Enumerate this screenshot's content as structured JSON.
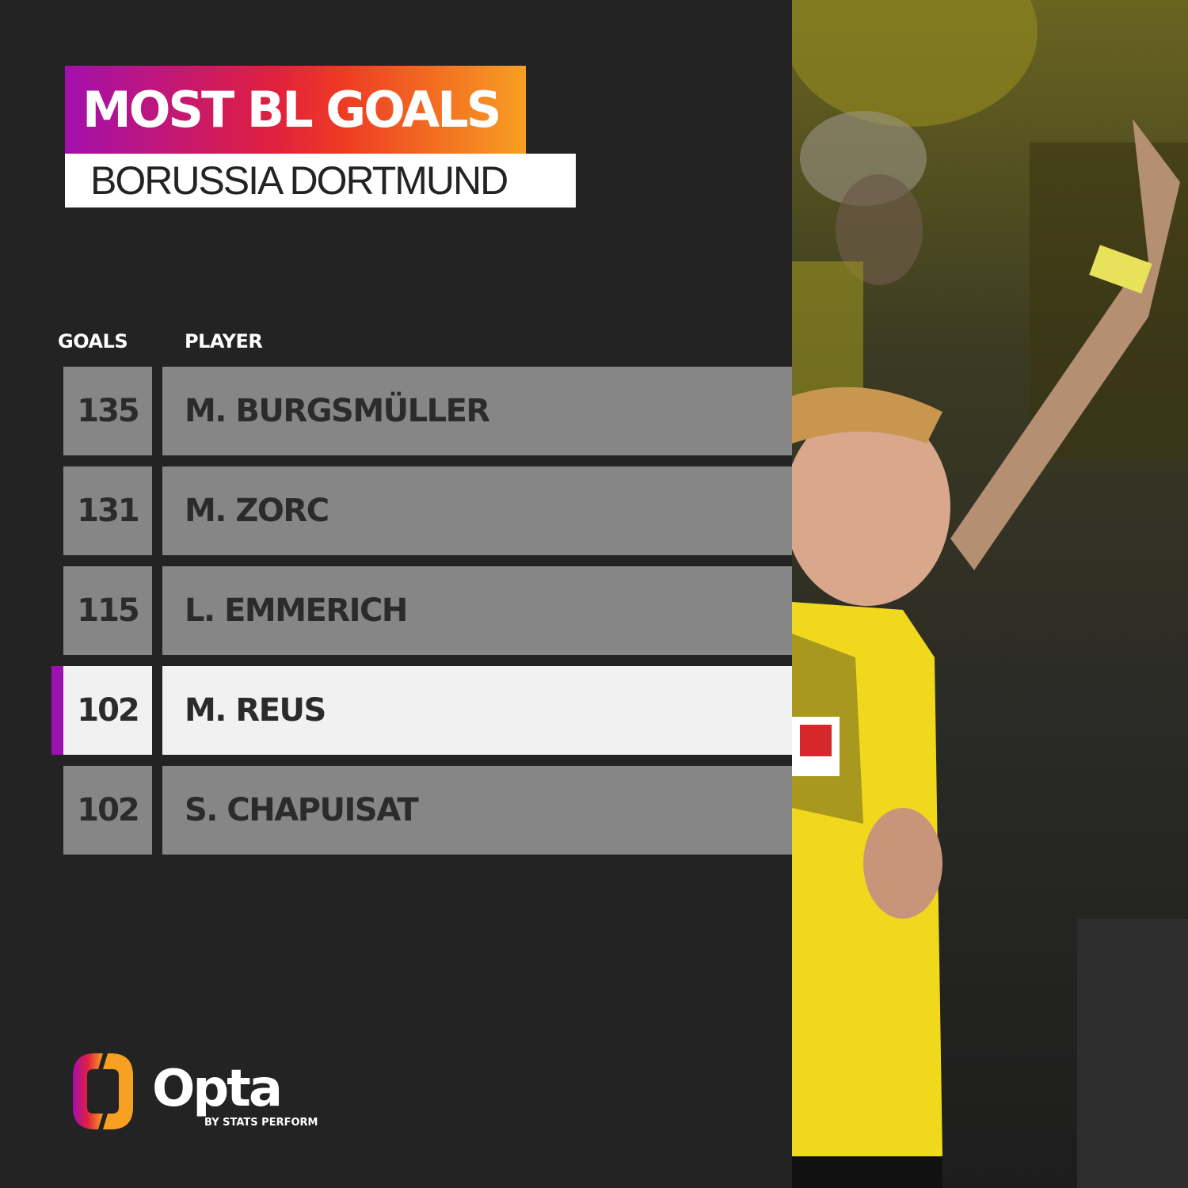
{
  "header": {
    "title": "MOST BL GOALS",
    "subtitle": "BORUSSIA DORTMUND"
  },
  "table": {
    "columns": [
      "GOALS",
      "PLAYER"
    ],
    "rows": [
      {
        "goals": "135",
        "player": "M. BURGSMÜLLER",
        "highlighted": false
      },
      {
        "goals": "131",
        "player": "M. ZORC",
        "highlighted": false
      },
      {
        "goals": "115",
        "player": "L. EMMERICH",
        "highlighted": false
      },
      {
        "goals": "102",
        "player": "M. REUS",
        "highlighted": true
      },
      {
        "goals": "102",
        "player": "S. CHAPUISAT",
        "highlighted": false
      }
    ]
  },
  "branding": {
    "logo": "Opta",
    "tagline": "BY STATS PERFORM"
  },
  "colors": {
    "background": "#232323",
    "highlight_bar": "#9c10b0",
    "row": "#868686",
    "row_highlight": "#f1f1f1",
    "gradient": [
      "#a30fad",
      "#e0203f",
      "#f7a021"
    ]
  }
}
